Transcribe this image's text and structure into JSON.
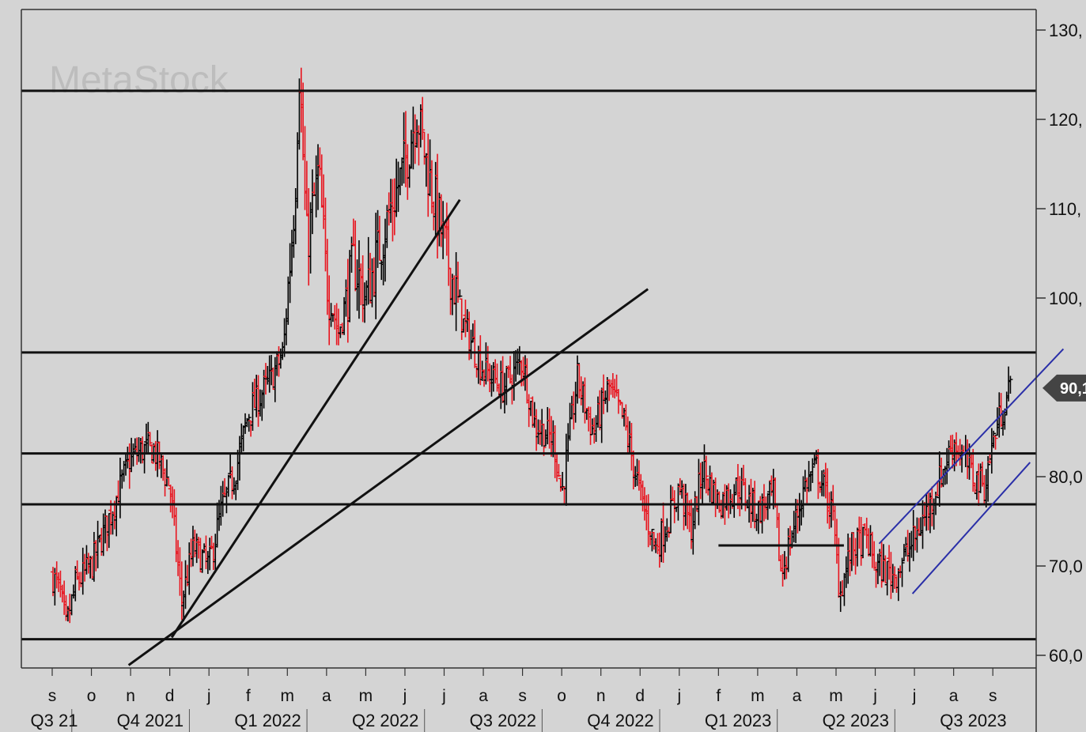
{
  "watermark": "MetaStock",
  "colors": {
    "background": "#d4d4d4",
    "bar_down": "#e8141e",
    "bar_up": "#000000",
    "trendline": "#111111",
    "channel": "#2a2fa8",
    "last_price_tag": "#444444"
  },
  "chart_data": {
    "type": "ohlc-bar",
    "ylim": [
      59,
      131
    ],
    "y_ticks": [
      "130,",
      "120,",
      "110,",
      "100,",
      "80,0",
      "70,0",
      "60,0"
    ],
    "y_tick_values": [
      130,
      120,
      110,
      100,
      80,
      70,
      60
    ],
    "last_price_label": "90,1",
    "last_price": 90.1,
    "month_labels": [
      "s",
      "o",
      "n",
      "d",
      "j",
      "f",
      "m",
      "a",
      "m",
      "j",
      "j",
      "a",
      "s",
      "o",
      "n",
      "d",
      "j",
      "f",
      "m",
      "a",
      "m",
      "j",
      "j",
      "a",
      "s"
    ],
    "quarter_labels": [
      "Q3 21",
      "Q4 2021",
      "Q1 2022",
      "Q2 2022",
      "Q3 2022",
      "Q4 2022",
      "Q1 2023",
      "Q2 2023",
      "Q3 2023"
    ],
    "price_path": [
      {
        "t": 0,
        "v": 69
      },
      {
        "t": 0.2,
        "v": 67
      },
      {
        "t": 0.35,
        "v": 63
      },
      {
        "t": 0.6,
        "v": 68
      },
      {
        "t": 1.0,
        "v": 70
      },
      {
        "t": 1.5,
        "v": 76
      },
      {
        "t": 2.0,
        "v": 82
      },
      {
        "t": 2.3,
        "v": 83
      },
      {
        "t": 2.6,
        "v": 83
      },
      {
        "t": 3.0,
        "v": 79
      },
      {
        "t": 3.3,
        "v": 66
      },
      {
        "t": 3.6,
        "v": 72
      },
      {
        "t": 4.0,
        "v": 70
      },
      {
        "t": 4.3,
        "v": 76
      },
      {
        "t": 4.7,
        "v": 81
      },
      {
        "t": 5.0,
        "v": 87
      },
      {
        "t": 5.6,
        "v": 91
      },
      {
        "t": 5.9,
        "v": 94
      },
      {
        "t": 6.2,
        "v": 112
      },
      {
        "t": 6.3,
        "v": 126
      },
      {
        "t": 6.5,
        "v": 106
      },
      {
        "t": 6.8,
        "v": 114
      },
      {
        "t": 7.0,
        "v": 102
      },
      {
        "t": 7.3,
        "v": 96
      },
      {
        "t": 7.7,
        "v": 104
      },
      {
        "t": 8.0,
        "v": 100
      },
      {
        "t": 8.5,
        "v": 108
      },
      {
        "t": 9.0,
        "v": 115
      },
      {
        "t": 9.3,
        "v": 121
      },
      {
        "t": 9.6,
        "v": 114
      },
      {
        "t": 10.0,
        "v": 106
      },
      {
        "t": 10.5,
        "v": 97
      },
      {
        "t": 11.0,
        "v": 92
      },
      {
        "t": 11.5,
        "v": 90
      },
      {
        "t": 12.0,
        "v": 93
      },
      {
        "t": 12.3,
        "v": 86
      },
      {
        "t": 12.8,
        "v": 84
      },
      {
        "t": 13.0,
        "v": 78
      },
      {
        "t": 13.4,
        "v": 91
      },
      {
        "t": 13.8,
        "v": 85
      },
      {
        "t": 14.2,
        "v": 90
      },
      {
        "t": 14.6,
        "v": 86
      },
      {
        "t": 15.0,
        "v": 78
      },
      {
        "t": 15.4,
        "v": 72
      },
      {
        "t": 15.8,
        "v": 76
      },
      {
        "t": 16.0,
        "v": 79
      },
      {
        "t": 16.3,
        "v": 74
      },
      {
        "t": 16.6,
        "v": 81
      },
      {
        "t": 17.0,
        "v": 77
      },
      {
        "t": 17.5,
        "v": 79
      },
      {
        "t": 18.0,
        "v": 76
      },
      {
        "t": 18.4,
        "v": 78
      },
      {
        "t": 18.6,
        "v": 69
      },
      {
        "t": 18.9,
        "v": 74
      },
      {
        "t": 19.2,
        "v": 79
      },
      {
        "t": 19.5,
        "v": 81
      },
      {
        "t": 19.9,
        "v": 76
      },
      {
        "t": 20.1,
        "v": 67
      },
      {
        "t": 20.4,
        "v": 72
      },
      {
        "t": 20.8,
        "v": 73
      },
      {
        "t": 21.0,
        "v": 70
      },
      {
        "t": 21.5,
        "v": 69
      },
      {
        "t": 22.0,
        "v": 73
      },
      {
        "t": 22.5,
        "v": 78
      },
      {
        "t": 23.0,
        "v": 84
      },
      {
        "t": 23.5,
        "v": 80
      },
      {
        "t": 23.8,
        "v": 79
      },
      {
        "t": 24.0,
        "v": 84
      },
      {
        "t": 24.2,
        "v": 87
      },
      {
        "t": 24.45,
        "v": 90
      }
    ],
    "horizontal_levels": [
      123.2,
      93.9,
      82.6,
      76.9,
      61.8
    ],
    "trendlines": [
      {
        "from": [
          3.05,
          62.0
        ],
        "to": [
          10.4,
          111.0
        ]
      },
      {
        "from": [
          1.95,
          58.9
        ],
        "to": [
          15.2,
          101.0
        ]
      },
      {
        "from": [
          17.0,
          72.3
        ],
        "to": [
          20.2,
          72.3
        ]
      }
    ],
    "channel_lines": [
      {
        "from": [
          21.1,
          72.5
        ],
        "to": [
          25.8,
          94.3
        ]
      },
      {
        "from": [
          21.95,
          66.9
        ],
        "to": [
          24.95,
          81.6
        ]
      }
    ]
  }
}
